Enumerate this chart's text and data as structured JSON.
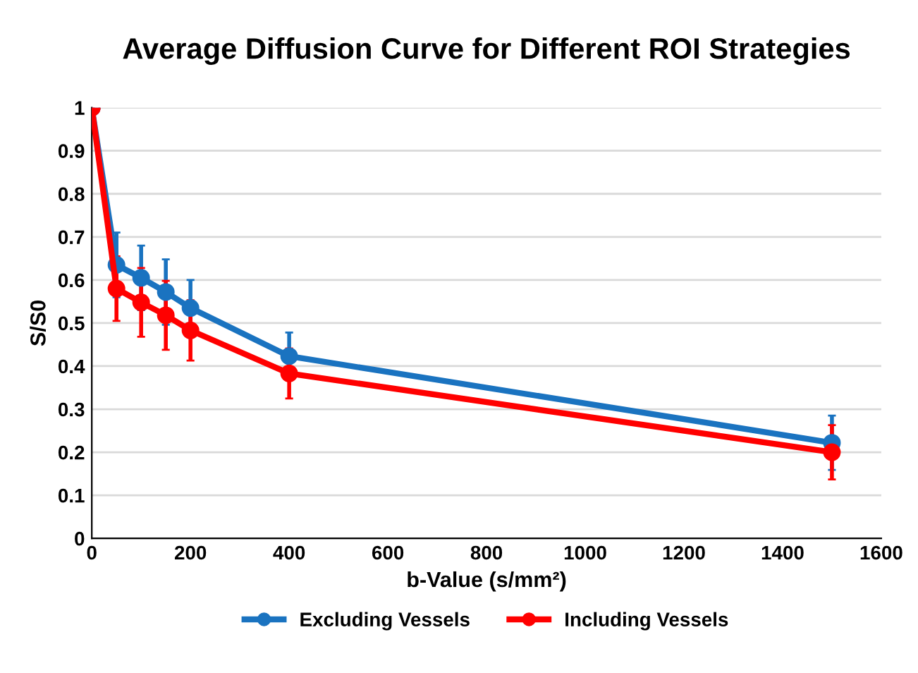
{
  "chart_data": {
    "type": "line",
    "title": "Average Diffusion Curve for Different ROI Strategies",
    "xlabel": "b-Value (s/mm²)",
    "ylabel": "S/S0",
    "x": [
      0,
      50,
      100,
      150,
      200,
      400,
      1500
    ],
    "series": [
      {
        "name": "Excluding Vessels",
        "color": "#1a73c0",
        "values": [
          1,
          0.635,
          0.605,
          0.572,
          0.535,
          0.423,
          0.222
        ],
        "errors": [
          null,
          0.075,
          0.075,
          0.076,
          0.065,
          0.055,
          0.063
        ]
      },
      {
        "name": "Including Vessels",
        "color": "#ff0000",
        "values": [
          1,
          0.58,
          0.548,
          0.518,
          0.483,
          0.383,
          0.2
        ],
        "errors": [
          null,
          0.075,
          0.08,
          0.08,
          0.07,
          0.058,
          0.063
        ]
      }
    ],
    "xlim": [
      0,
      1600
    ],
    "xticks": [
      0,
      200,
      400,
      600,
      800,
      1000,
      1200,
      1400,
      1600
    ],
    "ylim": [
      0,
      1
    ],
    "yticks": [
      0,
      0.1,
      0.2,
      0.3,
      0.4,
      0.5,
      0.6,
      0.7,
      0.8,
      0.9,
      1
    ],
    "grid": "y",
    "legend": "bottom",
    "marker": "circle",
    "line_style": "solid"
  }
}
